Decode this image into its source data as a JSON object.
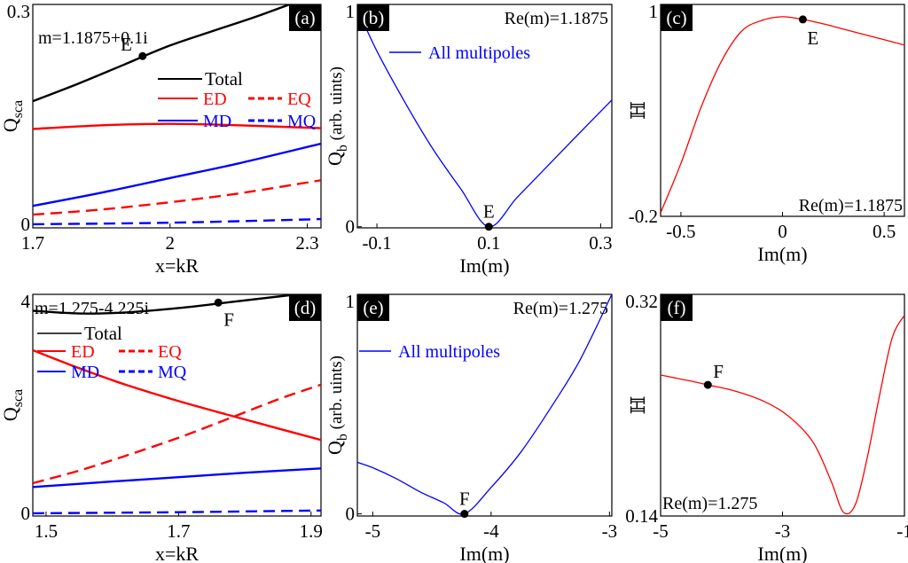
{
  "chart_data": [
    {
      "id": "a",
      "type": "line",
      "panel_label": "(a)",
      "xlabel": "x=kR",
      "ylabel_main": "Q",
      "ylabel_sub": "sca",
      "xlim": [
        1.7,
        2.33
      ],
      "ylim": [
        -0.005,
        0.3
      ],
      "xticks": [
        "1.7",
        "2",
        "2.3"
      ],
      "xtick_values": [
        1.7,
        2.0,
        2.3
      ],
      "yticks": [
        "0",
        "0.3"
      ],
      "ytick_values": [
        0,
        0.3
      ],
      "annotation": "m=1.1875+0.1i",
      "point": {
        "label": "E",
        "x": 1.94,
        "y": 0.2295
      },
      "legend": {
        "total": "Total",
        "ed": "ED",
        "eq": "EQ",
        "md": "MD",
        "mq": "MQ"
      },
      "series": [
        {
          "name": "Total",
          "color": "#000000",
          "dash": false,
          "x": [
            1.7,
            1.8,
            1.9,
            2.0,
            2.1,
            2.2,
            2.33
          ],
          "y": [
            0.168,
            0.192,
            0.218,
            0.244,
            0.265,
            0.286,
            0.316
          ]
        },
        {
          "name": "ED",
          "color": "#ff0000",
          "dash": false,
          "x": [
            1.7,
            1.85,
            2.0,
            2.15,
            2.33
          ],
          "y": [
            0.13,
            0.135,
            0.137,
            0.135,
            0.131
          ]
        },
        {
          "name": "MD",
          "color": "#0000ff",
          "dash": false,
          "x": [
            1.7,
            1.85,
            2.0,
            2.15,
            2.33
          ],
          "y": [
            0.025,
            0.043,
            0.063,
            0.083,
            0.11
          ]
        },
        {
          "name": "EQ",
          "color": "#ff0000",
          "dash": true,
          "x": [
            1.7,
            1.85,
            2.0,
            2.15,
            2.33
          ],
          "y": [
            0.013,
            0.02,
            0.03,
            0.042,
            0.06
          ]
        },
        {
          "name": "MQ",
          "color": "#0000ff",
          "dash": true,
          "x": [
            1.7,
            2.0,
            2.33
          ],
          "y": [
            0.0,
            0.002,
            0.007
          ]
        }
      ]
    },
    {
      "id": "b",
      "type": "line",
      "panel_label": "(b)",
      "xlabel": "Im(m)",
      "ylabel_main": "Q",
      "ylabel_sub": "b",
      "ylabel_rest": " (arb. uints)",
      "xlim": [
        -0.135,
        0.32
      ],
      "ylim": [
        -0.005,
        1.0
      ],
      "xticks": [
        "-0.1",
        "0.1",
        "0.3"
      ],
      "xtick_values": [
        -0.1,
        0.1,
        0.3
      ],
      "yticks": [
        "0",
        "1"
      ],
      "ytick_values": [
        0,
        1
      ],
      "annotation": "Re(m)=1.1875",
      "point": {
        "label": "E",
        "x": 0.1,
        "y": 0.0
      },
      "legend": {
        "all": "All multipoles"
      },
      "series": [
        {
          "name": "All multipoles",
          "color": "#0000ff",
          "dash": false,
          "x": [
            -0.135,
            -0.1,
            -0.05,
            0.0,
            0.05,
            0.1,
            0.15,
            0.2,
            0.25,
            0.32
          ],
          "y": [
            0.98,
            0.79,
            0.56,
            0.35,
            0.17,
            0.0,
            0.13,
            0.26,
            0.39,
            0.57
          ]
        }
      ]
    },
    {
      "id": "c",
      "type": "line",
      "panel_label": "(c)",
      "xlabel": "Im(m)",
      "ylabel_main": "ℍ",
      "xlim": [
        -0.6,
        0.6
      ],
      "ylim": [
        -0.2,
        1.0
      ],
      "xticks": [
        "-0.5",
        "0",
        "0.5"
      ],
      "xtick_values": [
        -0.5,
        0.0,
        0.5
      ],
      "yticks": [
        "-0.2",
        "1"
      ],
      "ytick_values": [
        -0.2,
        1.0
      ],
      "annotation": "Re(m)=1.1875",
      "point": {
        "label": "E",
        "x": 0.1,
        "y": 0.915
      },
      "series": [
        {
          "name": "H",
          "color": "#ff0000",
          "dash": false,
          "x": [
            -0.6,
            -0.5,
            -0.4,
            -0.3,
            -0.2,
            -0.1,
            0.0,
            0.1,
            0.2,
            0.3,
            0.4,
            0.5,
            0.6
          ],
          "y": [
            -0.18,
            0.1,
            0.42,
            0.68,
            0.85,
            0.91,
            0.93,
            0.915,
            0.89,
            0.86,
            0.83,
            0.8,
            0.77
          ]
        }
      ]
    },
    {
      "id": "d",
      "type": "line",
      "panel_label": "(d)",
      "xlabel": "x=kR",
      "ylabel_main": "Q",
      "ylabel_sub": "sca",
      "xlim": [
        1.48,
        1.915
      ],
      "ylim": [
        -0.05,
        4.0
      ],
      "xticks": [
        "1.5",
        "1.7",
        "1.9"
      ],
      "xtick_values": [
        1.5,
        1.7,
        1.9
      ],
      "yticks": [
        "0",
        "4"
      ],
      "ytick_values": [
        0,
        4
      ],
      "annotation": "m=1.275-4.225i",
      "point": {
        "label": "F",
        "x": 1.76,
        "y": 3.85
      },
      "legend": {
        "total": "Total",
        "ed": "ED",
        "eq": "EQ",
        "md": "MD",
        "mq": "MQ"
      },
      "series": [
        {
          "name": "Total",
          "color": "#000000",
          "dash": false,
          "x": [
            1.48,
            1.55,
            1.62,
            1.7,
            1.78,
            1.85,
            1.915
          ],
          "y": [
            3.7,
            3.65,
            3.67,
            3.75,
            3.86,
            3.96,
            4.05
          ]
        },
        {
          "name": "ED",
          "color": "#ff0000",
          "dash": false,
          "x": [
            1.48,
            1.55,
            1.62,
            1.7,
            1.78,
            1.85,
            1.915
          ],
          "y": [
            2.98,
            2.65,
            2.35,
            2.05,
            1.78,
            1.55,
            1.34
          ]
        },
        {
          "name": "EQ",
          "color": "#ff0000",
          "dash": true,
          "x": [
            1.48,
            1.55,
            1.62,
            1.7,
            1.78,
            1.85,
            1.915
          ],
          "y": [
            0.55,
            0.78,
            1.05,
            1.38,
            1.75,
            2.08,
            2.35
          ]
        },
        {
          "name": "MD",
          "color": "#0000ff",
          "dash": false,
          "x": [
            1.48,
            1.6,
            1.7,
            1.8,
            1.915
          ],
          "y": [
            0.48,
            0.58,
            0.66,
            0.74,
            0.82
          ]
        },
        {
          "name": "MQ",
          "color": "#0000ff",
          "dash": true,
          "x": [
            1.48,
            1.7,
            1.915
          ],
          "y": [
            0.0,
            0.02,
            0.05
          ]
        }
      ]
    },
    {
      "id": "e",
      "type": "line",
      "panel_label": "(e)",
      "xlabel": "Im(m)",
      "ylabel_main": "Q",
      "ylabel_sub": "b",
      "ylabel_rest": " (arb. uints)",
      "xlim": [
        -5.13,
        -2.98
      ],
      "ylim": [
        -0.01,
        1.0
      ],
      "xticks": [
        "-5",
        "-4",
        "-3"
      ],
      "xtick_values": [
        -5,
        -4,
        -3
      ],
      "yticks": [
        "0",
        "1"
      ],
      "ytick_values": [
        0,
        1
      ],
      "annotation": "Re(m)=1.275",
      "point": {
        "label": "F",
        "x": -4.225,
        "y": 0.0
      },
      "legend": {
        "all": "All multipoles"
      },
      "series": [
        {
          "name": "All multipoles",
          "color": "#0000ff",
          "dash": false,
          "x": [
            -5.13,
            -5.0,
            -4.8,
            -4.6,
            -4.4,
            -4.225,
            -4.0,
            -3.75,
            -3.5,
            -3.25,
            -2.98
          ],
          "y": [
            0.235,
            0.21,
            0.16,
            0.1,
            0.05,
            0.0,
            0.12,
            0.28,
            0.48,
            0.7,
            1.0
          ]
        }
      ]
    },
    {
      "id": "f",
      "type": "line",
      "panel_label": "(f)",
      "xlabel": "Im(m)",
      "ylabel_main": "ℍ",
      "xlim": [
        -5.0,
        -1.0
      ],
      "ylim": [
        0.14,
        0.32
      ],
      "xticks": [
        "-5",
        "-3",
        "-1"
      ],
      "xtick_values": [
        -5,
        -3,
        -1
      ],
      "yticks": [
        "0.14",
        "0.32"
      ],
      "ytick_values": [
        0.14,
        0.32
      ],
      "annotation": "Re(m)=1.275",
      "point": {
        "label": "F",
        "x": -4.225,
        "y": 0.2465
      },
      "series": [
        {
          "name": "H",
          "color": "#ff0000",
          "dash": false,
          "x": [
            -5.0,
            -4.5,
            -4.225,
            -3.8,
            -3.3,
            -2.9,
            -2.5,
            -2.2,
            -2.0,
            -1.8,
            -1.6,
            -1.4,
            -1.2,
            -1.0
          ],
          "y": [
            0.2545,
            0.2495,
            0.2465,
            0.2418,
            0.233,
            0.221,
            0.2,
            0.168,
            0.143,
            0.15,
            0.19,
            0.24,
            0.285,
            0.303
          ]
        }
      ]
    }
  ]
}
